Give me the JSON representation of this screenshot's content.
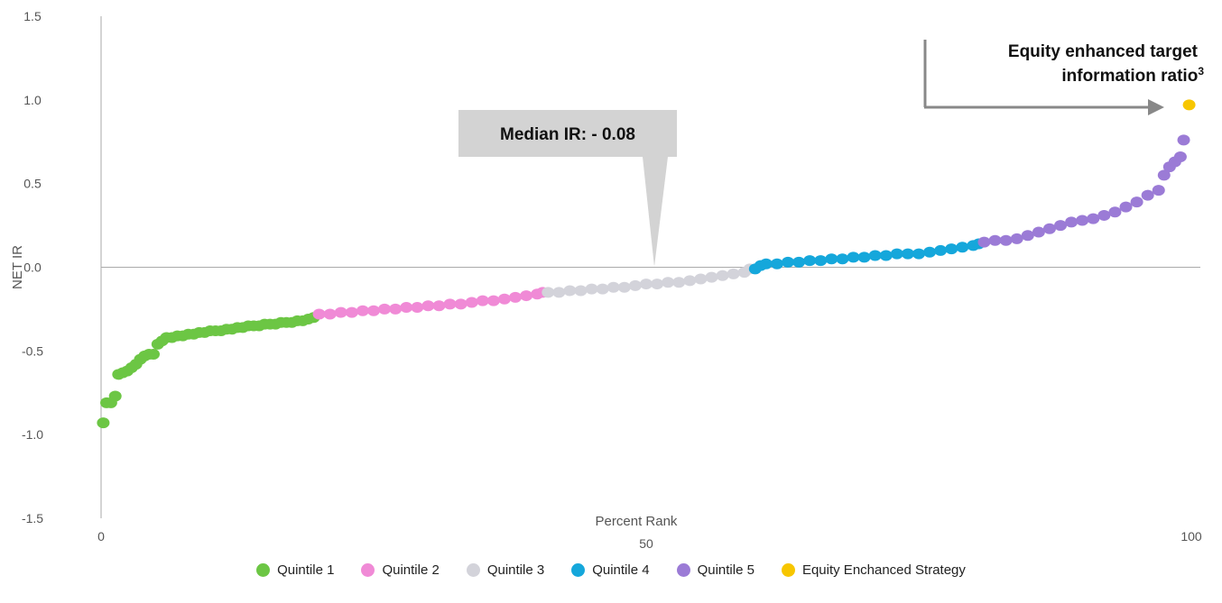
{
  "chart_data": {
    "type": "scatter",
    "xlabel": "Percent Rank",
    "ylabel": "NET IR",
    "xlim": [
      0,
      100
    ],
    "ylim": [
      -1.5,
      1.5
    ],
    "x_ticks": [
      "0",
      "50",
      "100"
    ],
    "y_ticks": [
      "1.5",
      "1.0",
      "0.5",
      "0.0",
      "-0.5",
      "-1.0",
      "-1.5"
    ],
    "grid": false,
    "legend_position": "bottom",
    "median_callout": "Median IR: - 0.08",
    "target_callout": {
      "line1": "Equity enhanced target",
      "line2": "information ratio",
      "superscript": "3"
    },
    "series": [
      {
        "name": "Quintile 1",
        "color": "#6cc644",
        "points": [
          [
            0.2,
            -0.93
          ],
          [
            0.5,
            -0.81
          ],
          [
            0.9,
            -0.81
          ],
          [
            1.3,
            -0.77
          ],
          [
            1.6,
            -0.64
          ],
          [
            2.0,
            -0.63
          ],
          [
            2.4,
            -0.62
          ],
          [
            2.8,
            -0.6
          ],
          [
            3.2,
            -0.58
          ],
          [
            3.6,
            -0.55
          ],
          [
            4.0,
            -0.53
          ],
          [
            4.4,
            -0.52
          ],
          [
            4.8,
            -0.52
          ],
          [
            5.2,
            -0.46
          ],
          [
            5.6,
            -0.44
          ],
          [
            6.0,
            -0.42
          ],
          [
            6.5,
            -0.42
          ],
          [
            7.0,
            -0.41
          ],
          [
            7.5,
            -0.41
          ],
          [
            8.0,
            -0.4
          ],
          [
            8.5,
            -0.4
          ],
          [
            9.0,
            -0.39
          ],
          [
            9.5,
            -0.39
          ],
          [
            10.0,
            -0.38
          ],
          [
            10.5,
            -0.38
          ],
          [
            11.0,
            -0.38
          ],
          [
            11.5,
            -0.37
          ],
          [
            12.0,
            -0.37
          ],
          [
            12.5,
            -0.36
          ],
          [
            13.0,
            -0.36
          ],
          [
            13.5,
            -0.35
          ],
          [
            14.0,
            -0.35
          ],
          [
            14.5,
            -0.35
          ],
          [
            15.0,
            -0.34
          ],
          [
            15.5,
            -0.34
          ],
          [
            16.0,
            -0.34
          ],
          [
            16.5,
            -0.33
          ],
          [
            17.0,
            -0.33
          ],
          [
            17.5,
            -0.33
          ],
          [
            18.0,
            -0.32
          ],
          [
            18.5,
            -0.32
          ],
          [
            19.0,
            -0.31
          ],
          [
            19.5,
            -0.3
          ]
        ]
      },
      {
        "name": "Quintile 2",
        "color": "#f08ad6",
        "points": [
          [
            20.0,
            -0.28
          ],
          [
            21.0,
            -0.28
          ],
          [
            22.0,
            -0.27
          ],
          [
            23.0,
            -0.27
          ],
          [
            24.0,
            -0.26
          ],
          [
            25.0,
            -0.26
          ],
          [
            26.0,
            -0.25
          ],
          [
            27.0,
            -0.25
          ],
          [
            28.0,
            -0.24
          ],
          [
            29.0,
            -0.24
          ],
          [
            30.0,
            -0.23
          ],
          [
            31.0,
            -0.23
          ],
          [
            32.0,
            -0.22
          ],
          [
            33.0,
            -0.22
          ],
          [
            34.0,
            -0.21
          ],
          [
            35.0,
            -0.2
          ],
          [
            36.0,
            -0.2
          ],
          [
            37.0,
            -0.19
          ],
          [
            38.0,
            -0.18
          ],
          [
            39.0,
            -0.17
          ],
          [
            40.0,
            -0.16
          ],
          [
            40.5,
            -0.15
          ]
        ]
      },
      {
        "name": "Quintile 3",
        "color": "#d3d3da",
        "points": [
          [
            41.0,
            -0.15
          ],
          [
            42.0,
            -0.15
          ],
          [
            43.0,
            -0.14
          ],
          [
            44.0,
            -0.14
          ],
          [
            45.0,
            -0.13
          ],
          [
            46.0,
            -0.13
          ],
          [
            47.0,
            -0.12
          ],
          [
            48.0,
            -0.12
          ],
          [
            49.0,
            -0.11
          ],
          [
            50.0,
            -0.1
          ],
          [
            51.0,
            -0.1
          ],
          [
            52.0,
            -0.09
          ],
          [
            53.0,
            -0.09
          ],
          [
            54.0,
            -0.08
          ],
          [
            55.0,
            -0.07
          ],
          [
            56.0,
            -0.06
          ],
          [
            57.0,
            -0.05
          ],
          [
            58.0,
            -0.04
          ],
          [
            59.0,
            -0.03
          ],
          [
            59.5,
            -0.01
          ]
        ]
      },
      {
        "name": "Quintile 4",
        "color": "#15a7db",
        "points": [
          [
            60.0,
            -0.01
          ],
          [
            60.5,
            0.01
          ],
          [
            61.0,
            0.02
          ],
          [
            62.0,
            0.02
          ],
          [
            63.0,
            0.03
          ],
          [
            64.0,
            0.03
          ],
          [
            65.0,
            0.04
          ],
          [
            66.0,
            0.04
          ],
          [
            67.0,
            0.05
          ],
          [
            68.0,
            0.05
          ],
          [
            69.0,
            0.06
          ],
          [
            70.0,
            0.06
          ],
          [
            71.0,
            0.07
          ],
          [
            72.0,
            0.07
          ],
          [
            73.0,
            0.08
          ],
          [
            74.0,
            0.08
          ],
          [
            75.0,
            0.08
          ],
          [
            76.0,
            0.09
          ],
          [
            77.0,
            0.1
          ],
          [
            78.0,
            0.11
          ],
          [
            79.0,
            0.12
          ],
          [
            80.0,
            0.13
          ],
          [
            80.5,
            0.14
          ]
        ]
      },
      {
        "name": "Quintile 5",
        "color": "#9b7bd6",
        "points": [
          [
            81.0,
            0.15
          ],
          [
            82.0,
            0.16
          ],
          [
            83.0,
            0.16
          ],
          [
            84.0,
            0.17
          ],
          [
            85.0,
            0.19
          ],
          [
            86.0,
            0.21
          ],
          [
            87.0,
            0.23
          ],
          [
            88.0,
            0.25
          ],
          [
            89.0,
            0.27
          ],
          [
            90.0,
            0.28
          ],
          [
            91.0,
            0.29
          ],
          [
            92.0,
            0.31
          ],
          [
            93.0,
            0.33
          ],
          [
            94.0,
            0.36
          ],
          [
            95.0,
            0.39
          ],
          [
            96.0,
            0.43
          ],
          [
            97.0,
            0.46
          ],
          [
            97.5,
            0.55
          ],
          [
            98.0,
            0.6
          ],
          [
            98.5,
            0.63
          ],
          [
            99.0,
            0.66
          ],
          [
            99.3,
            0.76
          ]
        ]
      },
      {
        "name": "Equity Enchanced Strategy",
        "color": "#f7c600",
        "points": [
          [
            99.8,
            0.97
          ]
        ]
      }
    ]
  }
}
